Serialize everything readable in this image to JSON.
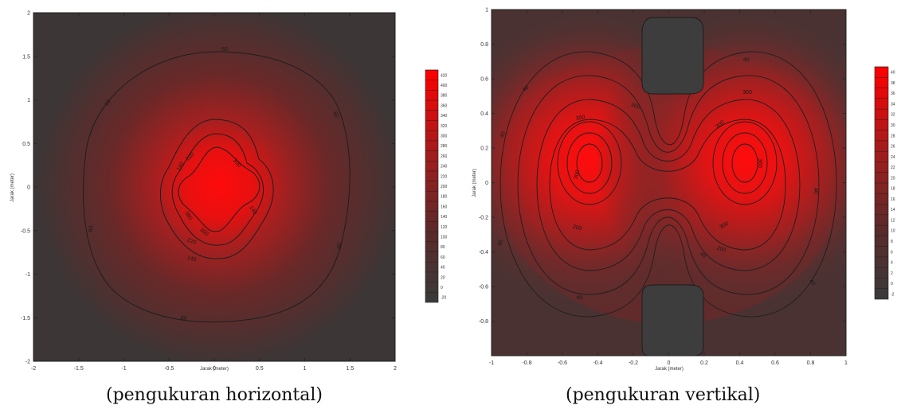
{
  "chart_data": [
    {
      "type": "heatmap",
      "caption": "(pengukuran horizontal)",
      "xlabel": "Jarak (meter)",
      "ylabel": "Jarak (meter)",
      "xlim": [
        -2,
        2
      ],
      "ylim": [
        -2,
        2
      ],
      "xticks": [
        "-2",
        "-1.5",
        "-1",
        "-0.5",
        "0",
        "0.5",
        "1",
        "1.5",
        "2"
      ],
      "yticks": [
        "2",
        "1.5",
        "1",
        "0.5",
        "0",
        "-0.5",
        "-1",
        "-1.5",
        "-2"
      ],
      "colorbar_ticks": [
        "420",
        "400",
        "380",
        "360",
        "340",
        "320",
        "300",
        "280",
        "260",
        "240",
        "220",
        "200",
        "180",
        "160",
        "140",
        "120",
        "100",
        "80",
        "60",
        "40",
        "20",
        "0",
        "-20"
      ],
      "contour_labels": [
        "60",
        "60",
        "60",
        "60",
        "60",
        "60",
        "140",
        "140",
        "140",
        "220",
        "220",
        "300",
        "300",
        "380"
      ],
      "colormap": {
        "low": "#3a3a3a",
        "high": "#ff0000"
      }
    },
    {
      "type": "heatmap",
      "caption": "(pengukuran vertikal)",
      "xlabel": "Jarak (meter)",
      "ylabel": "Jarak (meter)",
      "xlim": [
        -1,
        1
      ],
      "ylim": [
        -1,
        1
      ],
      "xticks": [
        "-1",
        "-0.8",
        "-0.6",
        "-0.4",
        "-0.2",
        "0",
        "0.2",
        "0.4",
        "0.6",
        "0.8",
        "1"
      ],
      "yticks": [
        "1",
        "0.8",
        "0.6",
        "0.4",
        "0.2",
        "0",
        "-0.2",
        "-0.4",
        "-0.6",
        "-0.8"
      ],
      "colorbar_ticks": [
        "40",
        "38",
        "36",
        "34",
        "32",
        "30",
        "28",
        "26",
        "24",
        "22",
        "20",
        "18",
        "16",
        "14",
        "12",
        "10",
        "8",
        "6",
        "4",
        "2",
        "0",
        "-2"
      ],
      "contour_labels": [
        "40",
        "40",
        "40",
        "40",
        "40",
        "40",
        "300",
        "300",
        "200",
        "200",
        "300",
        "300",
        "360",
        "300",
        "300",
        "40",
        "40"
      ],
      "colormap": {
        "low": "#3a3a3a",
        "high": "#ff0000"
      }
    }
  ]
}
